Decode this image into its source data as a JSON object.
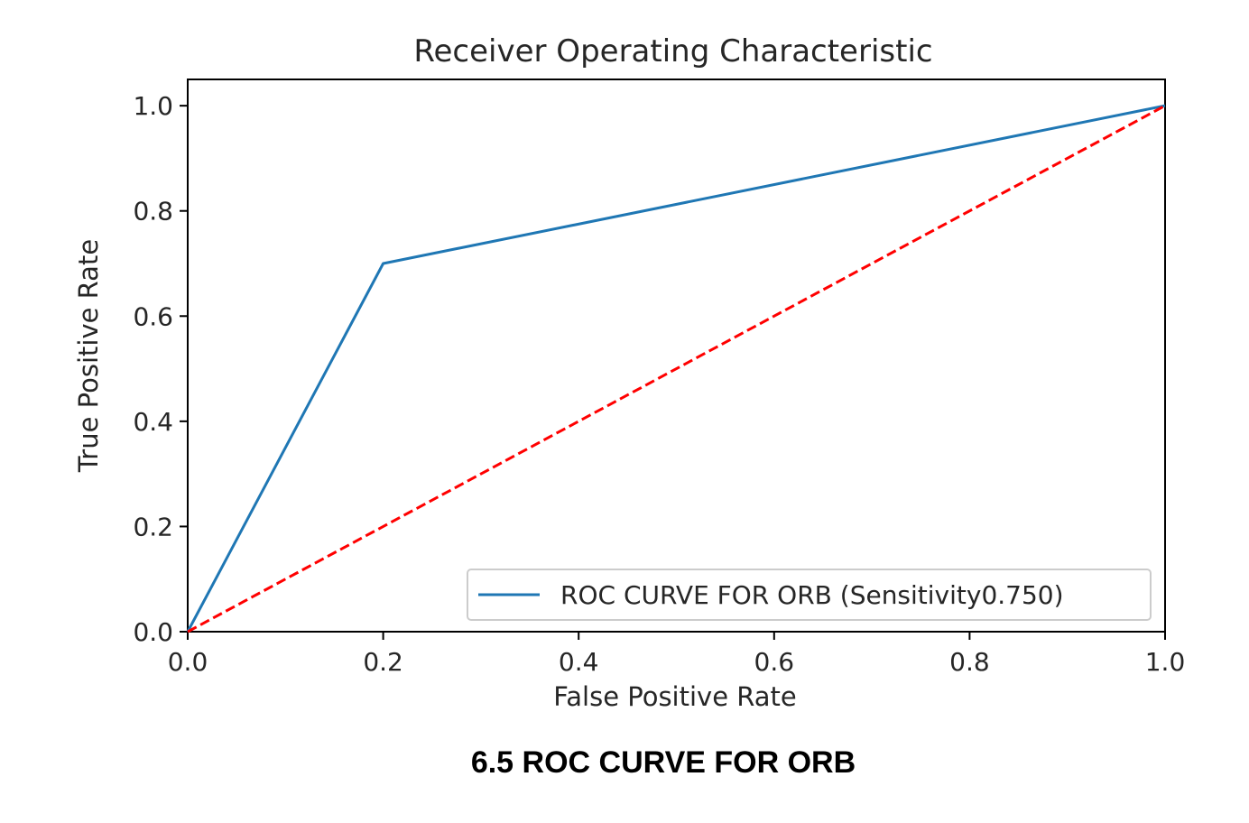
{
  "chart_data": {
    "type": "line",
    "title": "Receiver Operating Characteristic",
    "xlabel": "False Positive Rate",
    "ylabel": "True Positive Rate",
    "xlim": [
      0,
      1
    ],
    "ylim": [
      0,
      1.05
    ],
    "xticks": [
      0.0,
      0.2,
      0.4,
      0.6,
      0.8,
      1.0
    ],
    "yticks": [
      0.0,
      0.2,
      0.4,
      0.6,
      0.8,
      1.0
    ],
    "xtick_labels": [
      "0.0",
      "0.2",
      "0.4",
      "0.6",
      "0.8",
      "1.0"
    ],
    "ytick_labels": [
      "0.0",
      "0.2",
      "0.4",
      "0.6",
      "0.8",
      "1.0"
    ],
    "grid": false,
    "legend_position": "lower-right",
    "series": [
      {
        "name": "ROC CURVE FOR ORB (Sensitivity0.750)",
        "x": [
          0.0,
          0.2,
          1.0
        ],
        "y": [
          0.0,
          0.7,
          1.0
        ],
        "color": "#1f77b4",
        "style": "solid"
      },
      {
        "x": [
          0.0,
          1.0
        ],
        "y": [
          0.0,
          1.0
        ],
        "color": "#ff0000",
        "style": "dashed"
      }
    ]
  },
  "caption": "6.5 ROC CURVE FOR ORB"
}
